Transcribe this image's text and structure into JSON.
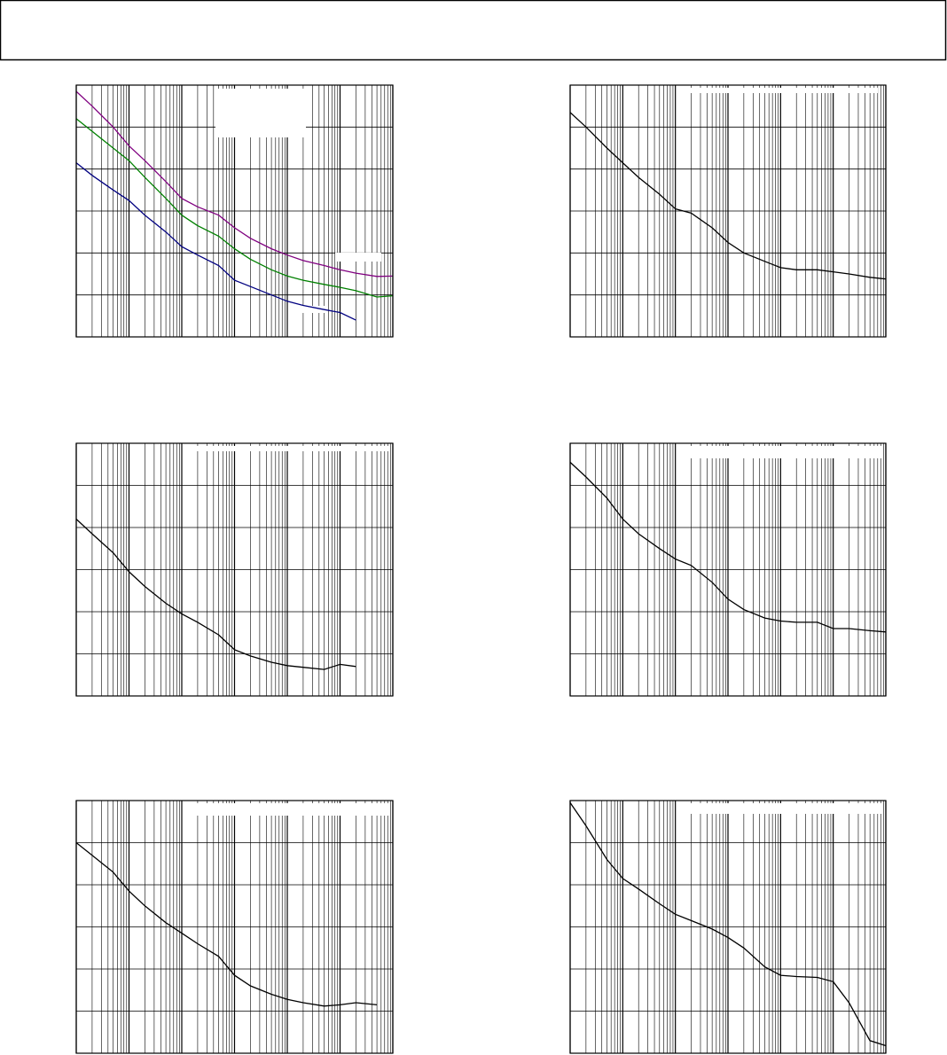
{
  "chart_data": [
    {
      "type": "line",
      "xscale": "log",
      "grid": true,
      "xlim": [
        1,
        1000000
      ],
      "ylim": [
        0,
        6
      ],
      "xticks": [
        1,
        10,
        100,
        1000,
        10000,
        100000,
        1000000
      ],
      "yticks": [
        0,
        1,
        2,
        3,
        4,
        5,
        6
      ],
      "x": [
        1,
        2,
        5,
        10,
        20,
        50,
        100,
        200,
        500,
        1000,
        2000,
        5000,
        10000,
        20000,
        50000,
        100000,
        200000,
        500000,
        1000000
      ],
      "series": [
        {
          "color": "#800080",
          "values": [
            5.85,
            5.5,
            5.0,
            4.55,
            4.2,
            3.7,
            3.3,
            3.1,
            2.9,
            2.6,
            2.35,
            2.1,
            1.95,
            1.82,
            1.7,
            1.6,
            1.52,
            1.44,
            1.45
          ]
        },
        {
          "color": "#008000",
          "values": [
            5.2,
            4.9,
            4.5,
            4.2,
            3.8,
            3.3,
            2.9,
            2.65,
            2.4,
            2.1,
            1.85,
            1.6,
            1.45,
            1.35,
            1.25,
            1.18,
            1.1,
            0.95,
            0.98
          ]
        },
        {
          "color": "#000080",
          "values": [
            4.15,
            3.85,
            3.5,
            3.25,
            2.9,
            2.5,
            2.15,
            1.95,
            1.7,
            1.35,
            1.2,
            1.0,
            0.85,
            0.75,
            0.65,
            0.58,
            0.4,
            null,
            null
          ]
        }
      ]
    },
    {
      "type": "line",
      "xscale": "log",
      "grid": true,
      "xlim": [
        1,
        1000000
      ],
      "ylim": [
        0,
        6
      ],
      "xticks": [
        1,
        10,
        100,
        1000,
        10000,
        100000,
        1000000
      ],
      "yticks": [
        0,
        1,
        2,
        3,
        4,
        5,
        6
      ],
      "x": [
        1,
        2,
        5,
        10,
        20,
        50,
        100,
        200,
        500,
        1000,
        2000,
        5000,
        10000,
        20000,
        50000,
        100000,
        200000,
        500000,
        1000000
      ],
      "series": [
        {
          "color": "#000000",
          "values": [
            5.35,
            5.0,
            4.5,
            4.15,
            3.8,
            3.4,
            3.05,
            2.95,
            2.6,
            2.25,
            2.0,
            1.8,
            1.65,
            1.6,
            1.6,
            1.55,
            1.5,
            1.42,
            1.38
          ]
        }
      ]
    },
    {
      "type": "line",
      "xscale": "log",
      "grid": true,
      "xlim": [
        1,
        1000000
      ],
      "ylim": [
        0,
        6
      ],
      "xticks": [
        1,
        10,
        100,
        1000,
        10000,
        100000,
        1000000
      ],
      "yticks": [
        0,
        1,
        2,
        3,
        4,
        5,
        6
      ],
      "x": [
        1,
        2,
        5,
        10,
        20,
        50,
        100,
        200,
        500,
        1000,
        2000,
        5000,
        10000,
        20000,
        50000,
        100000,
        200000,
        500000,
        1000000
      ],
      "series": [
        {
          "color": "#000000",
          "values": [
            4.2,
            3.85,
            3.4,
            2.95,
            2.6,
            2.2,
            1.95,
            1.75,
            1.45,
            1.1,
            0.95,
            0.8,
            0.72,
            0.68,
            0.63,
            0.75,
            0.7,
            null,
            null
          ]
        }
      ]
    },
    {
      "type": "line",
      "xscale": "log",
      "grid": true,
      "xlim": [
        1,
        1000000
      ],
      "ylim": [
        0,
        6
      ],
      "xticks": [
        1,
        10,
        100,
        1000,
        10000,
        100000,
        1000000
      ],
      "yticks": [
        0,
        1,
        2,
        3,
        4,
        5,
        6
      ],
      "x": [
        1,
        2,
        5,
        10,
        20,
        50,
        100,
        200,
        500,
        1000,
        2000,
        5000,
        10000,
        20000,
        50000,
        100000,
        200000,
        500000,
        1000000
      ],
      "series": [
        {
          "color": "#000000",
          "values": [
            5.55,
            5.2,
            4.7,
            4.2,
            3.85,
            3.5,
            3.25,
            3.1,
            2.7,
            2.3,
            2.05,
            1.85,
            1.78,
            1.75,
            1.75,
            1.6,
            1.6,
            1.55,
            1.52
          ]
        }
      ]
    },
    {
      "type": "line",
      "xscale": "log",
      "grid": true,
      "xlim": [
        1,
        1000000
      ],
      "ylim": [
        0,
        6
      ],
      "xticks": [
        1,
        10,
        100,
        1000,
        10000,
        100000,
        1000000
      ],
      "yticks": [
        0,
        1,
        2,
        3,
        4,
        5,
        6
      ],
      "x": [
        1,
        2,
        5,
        10,
        20,
        50,
        100,
        200,
        500,
        1000,
        2000,
        5000,
        10000,
        20000,
        50000,
        100000,
        200000,
        500000,
        1000000
      ],
      "series": [
        {
          "color": "#000000",
          "values": [
            5.0,
            4.7,
            4.3,
            3.85,
            3.5,
            3.1,
            2.85,
            2.6,
            2.3,
            1.85,
            1.6,
            1.4,
            1.28,
            1.2,
            1.12,
            1.15,
            1.2,
            1.15,
            null
          ]
        }
      ]
    },
    {
      "type": "line",
      "xscale": "log",
      "grid": true,
      "xlim": [
        1,
        1000000
      ],
      "ylim": [
        0,
        6
      ],
      "xticks": [
        1,
        10,
        100,
        1000,
        10000,
        100000,
        1000000
      ],
      "yticks": [
        0,
        1,
        2,
        3,
        4,
        5,
        6
      ],
      "x": [
        1,
        2,
        5,
        10,
        20,
        50,
        100,
        200,
        500,
        1000,
        2000,
        5000,
        10000,
        20000,
        50000,
        100000,
        200000,
        500000,
        1000000
      ],
      "series": [
        {
          "color": "#000000",
          "values": [
            5.95,
            5.4,
            4.6,
            4.15,
            3.9,
            3.55,
            3.3,
            3.15,
            2.95,
            2.75,
            2.5,
            2.05,
            1.85,
            1.82,
            1.8,
            1.7,
            1.2,
            0.3,
            0.18
          ]
        }
      ]
    }
  ]
}
